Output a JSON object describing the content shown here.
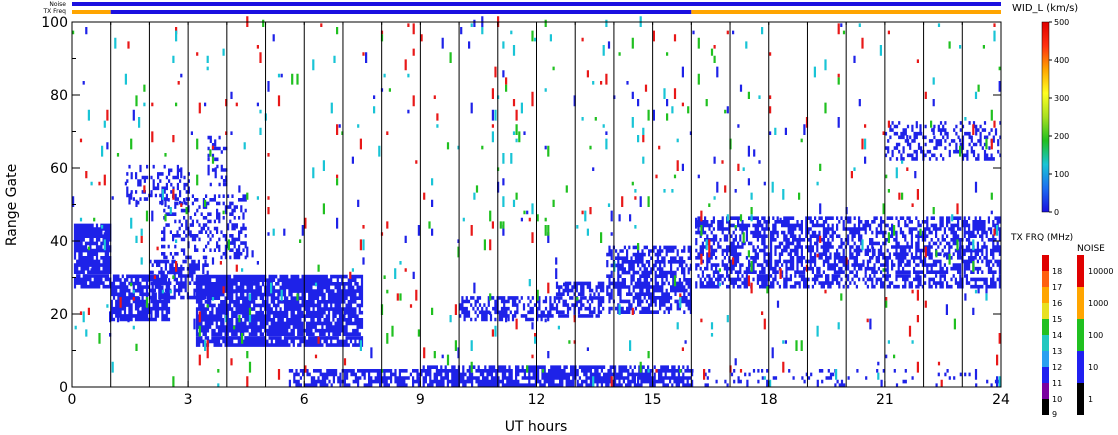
{
  "chart_data": {
    "type": "heatmap",
    "title": "",
    "xlabel": "UT hours",
    "ylabel": "Range Gate",
    "xlim": [
      0,
      24
    ],
    "ylim": [
      0,
      100
    ],
    "x_ticks": [
      "0",
      "3",
      "6",
      "9",
      "12",
      "15",
      "18",
      "21",
      "24"
    ],
    "y_ticks": [
      "0",
      "20",
      "40",
      "60",
      "80",
      "100"
    ],
    "vertical_hour_lines": [
      1,
      2,
      3,
      4,
      5,
      6,
      7,
      8,
      9,
      10,
      11,
      12,
      13,
      14,
      15,
      16,
      17,
      18,
      19,
      20,
      21,
      22,
      23
    ],
    "status_bars": {
      "noise_label": "Noise",
      "txfreq_label": "TX Freq",
      "noise_color": "#1a10e0",
      "txfreq_segments": [
        {
          "from": 0,
          "to": 1,
          "color": "#ffa500"
        },
        {
          "from": 1,
          "to": 16,
          "color": "#1a10e0"
        },
        {
          "from": 16,
          "to": 24,
          "color": "#ffa500"
        }
      ]
    },
    "dense_regions": [
      {
        "x": [
          0.05,
          1.0
        ],
        "y": [
          27,
          44
        ],
        "color": "#1e22e8",
        "density": 0.85
      },
      {
        "x": [
          1.0,
          2.5
        ],
        "y": [
          18,
          30
        ],
        "color": "#1e22e8",
        "density": 0.8
      },
      {
        "x": [
          2.0,
          3.5
        ],
        "y": [
          24,
          34
        ],
        "color": "#1e22e8",
        "density": 0.55
      },
      {
        "x": [
          3.2,
          7.5
        ],
        "y": [
          11,
          30
        ],
        "color": "#1e22e8",
        "density": 0.85
      },
      {
        "x": [
          2.3,
          4.5
        ],
        "y": [
          35,
          52
        ],
        "color": "#1e22e8",
        "density": 0.35
      },
      {
        "x": [
          1.4,
          3.0
        ],
        "y": [
          50,
          60
        ],
        "color": "#1e22e8",
        "density": 0.3
      },
      {
        "x": [
          3.5,
          4.0
        ],
        "y": [
          55,
          68
        ],
        "color": "#1e22e8",
        "density": 0.3
      },
      {
        "x": [
          5.6,
          9.0
        ],
        "y": [
          0,
          4
        ],
        "color": "#1e22e8",
        "density": 0.6
      },
      {
        "x": [
          9.0,
          16.0
        ],
        "y": [
          0,
          5
        ],
        "color": "#1e22e8",
        "density": 0.75
      },
      {
        "x": [
          10.0,
          12.5
        ],
        "y": [
          18,
          24
        ],
        "color": "#1e22e8",
        "density": 0.55
      },
      {
        "x": [
          12.5,
          13.7
        ],
        "y": [
          19,
          28
        ],
        "color": "#1e22e8",
        "density": 0.6
      },
      {
        "x": [
          13.8,
          16.0
        ],
        "y": [
          20,
          38
        ],
        "color": "#1e22e8",
        "density": 0.6
      },
      {
        "x": [
          16.1,
          24.0
        ],
        "y": [
          27,
          46
        ],
        "color": "#1e22e8",
        "density": 0.55
      },
      {
        "x": [
          21.0,
          24.0
        ],
        "y": [
          62,
          72
        ],
        "color": "#1e22e8",
        "density": 0.35
      },
      {
        "x": [
          16.0,
          24.0
        ],
        "y": [
          0,
          4
        ],
        "color": "#1e22e8",
        "density": 0.12
      }
    ],
    "sparse_noise": {
      "x": [
        0,
        24
      ],
      "y": [
        0,
        100
      ],
      "density": 0.07,
      "colors": [
        "#e81818",
        "#1e22e8",
        "#19c4d6",
        "#20c020"
      ]
    },
    "velocity_colorbar": {
      "label": "WID_L (km/s)",
      "ticks": [
        "0",
        "100",
        "200",
        "300",
        "400",
        "500"
      ],
      "range": [
        0,
        500
      ],
      "gradient": [
        "#1a10e0",
        "#1c6ef0",
        "#19c4d6",
        "#20c020",
        "#a8e020",
        "#ffff20",
        "#ffa500",
        "#ff3010",
        "#e00000"
      ]
    },
    "txfreq_colorbar": {
      "label": "TX FRQ (MHz)",
      "ticks": [
        "9",
        "10",
        "11",
        "12",
        "13",
        "14",
        "15",
        "16",
        "17",
        "18"
      ],
      "colors": [
        "#000000",
        "#7a00a0",
        "#2020f0",
        "#2aa0f0",
        "#20c8c0",
        "#20c020",
        "#e8e020",
        "#ffa500",
        "#ff6010",
        "#e00000"
      ]
    },
    "noise_colorbar": {
      "label": "NOISE",
      "ticks": [
        "1",
        "10",
        "100",
        "1000",
        "10000"
      ],
      "colors": [
        "#000000",
        "#2020f0",
        "#20c020",
        "#ffa500",
        "#e00000"
      ]
    }
  }
}
